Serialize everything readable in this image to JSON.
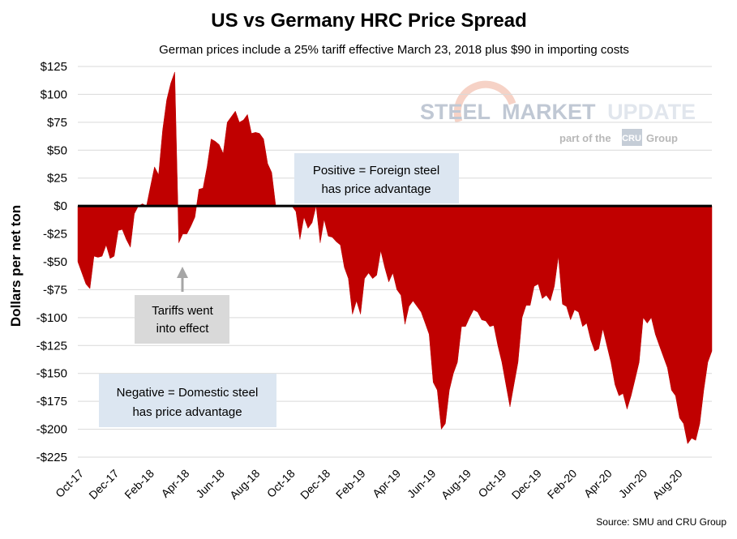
{
  "chart_data": {
    "type": "area",
    "title": "US vs Germany HRC Price Spread",
    "subtitle": "German prices include a 25% tariff effective March 23, 2018 plus $90 in importing costs",
    "ylabel": "Dollars per net ton",
    "xlabel": "",
    "source": "Source: SMU and CRU Group",
    "ylim": [
      -225,
      125
    ],
    "y_ticks": [
      125,
      100,
      75,
      50,
      25,
      0,
      -25,
      -50,
      -75,
      -100,
      -125,
      -150,
      -175,
      -200,
      -225
    ],
    "y_tick_labels": [
      "$125",
      "$100",
      "$75",
      "$50",
      "$25",
      "$0",
      "-$25",
      "-$50",
      "-$75",
      "-$100",
      "-$125",
      "-$150",
      "-$175",
      "-$200",
      "-$225"
    ],
    "x_tick_labels": [
      "Oct-17",
      "Dec-17",
      "Feb-18",
      "Apr-18",
      "Jun-18",
      "Aug-18",
      "Oct-18",
      "Dec-18",
      "Feb-19",
      "Apr-19",
      "Jun-19",
      "Aug-19",
      "Oct-19",
      "Dec-19",
      "Feb-20",
      "Apr-20",
      "Jun-20",
      "Aug-20"
    ],
    "grid": true,
    "fill_color": "#c00000",
    "zero_line_color": "#000000",
    "series": [
      {
        "values": [
          -50,
          -60,
          -70,
          -74,
          -45,
          -46,
          -45,
          -35,
          -47,
          -45,
          -22,
          -21,
          -30,
          -37,
          -7,
          0,
          2,
          0,
          18,
          35,
          28,
          68,
          95,
          110,
          120,
          -33,
          -25,
          -25,
          -18,
          -10,
          15,
          16,
          35,
          60,
          58,
          55,
          47,
          75,
          80,
          85,
          75,
          77,
          82,
          65,
          66,
          65,
          60,
          38,
          30,
          0,
          0,
          0,
          0,
          0,
          -5,
          -30,
          -10,
          -20,
          -15,
          0,
          -33,
          -12,
          -27,
          -28,
          -32,
          -35,
          -55,
          -65,
          -97,
          -85,
          -97,
          -65,
          -60,
          -65,
          -62,
          -40,
          -55,
          -68,
          -60,
          -75,
          -80,
          -106,
          -90,
          -85,
          -90,
          -95,
          -105,
          -115,
          -158,
          -165,
          -200,
          -195,
          -165,
          -150,
          -140,
          -108,
          -108,
          -100,
          -93,
          -95,
          -102,
          -103,
          -108,
          -107,
          -125,
          -140,
          -160,
          -180,
          -160,
          -140,
          -100,
          -89,
          -89,
          -72,
          -70,
          -83,
          -80,
          -85,
          -72,
          -45,
          -88,
          -90,
          -102,
          -93,
          -95,
          -108,
          -105,
          -120,
          -130,
          -128,
          -110,
          -125,
          -140,
          -160,
          -170,
          -168,
          -182,
          -170,
          -155,
          -140,
          -100,
          -105,
          -100,
          -115,
          -125,
          -135,
          -145,
          -165,
          -170,
          -190,
          -195,
          -213,
          -208,
          -210,
          -195,
          -165,
          -140,
          -130
        ]
      }
    ],
    "annotations": [
      {
        "lines": [
          "Positive = Foreign steel",
          "has price advantage"
        ]
      },
      {
        "lines": [
          "Negative = Domestic steel",
          "has price advantage"
        ]
      },
      {
        "lines": [
          "Tariffs went",
          "into effect"
        ]
      }
    ]
  },
  "logo": {
    "line1_a": "STEEL",
    "line1_b": "MARKET",
    "line1_c": "UPDATE",
    "line2_a": "part of the",
    "line2_b": "CRU",
    "line2_c": "Group"
  },
  "colors": {
    "note_box": "#dce6f1",
    "tariff_box": "#d9d9d9",
    "arrow": "#a6a6a6",
    "logo_dark": "#c0c8d4",
    "logo_light": "#e1e6ed",
    "logo_arc": "#f6d2c6"
  }
}
